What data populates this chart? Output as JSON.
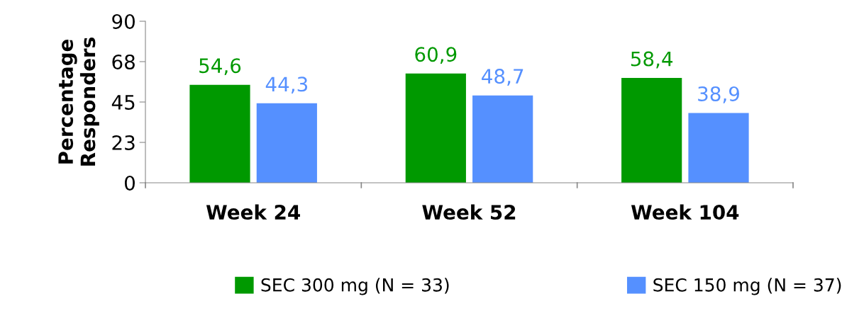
{
  "chart_data": {
    "type": "bar",
    "ylabel": "Percentage\nResponders",
    "categories": [
      "Week 24",
      "Week 52",
      "Week 104"
    ],
    "series": [
      {
        "name": "SEC 300 mg (N = 33)",
        "color": "#009900",
        "values": [
          54.6,
          60.9,
          58.4
        ],
        "value_labels": [
          "54,6",
          "60,9",
          "58,4"
        ]
      },
      {
        "name": "SEC 150 mg (N = 37)",
        "color": "#5590ff",
        "values": [
          44.3,
          48.7,
          38.9
        ],
        "value_labels": [
          "44,3",
          "48,7",
          "38,9"
        ]
      }
    ],
    "ylim": [
      0,
      90
    ],
    "yticks": [
      0,
      {
        "value": 22.5,
        "label": "23"
      },
      45,
      {
        "value": 67.5,
        "label": "68"
      },
      90
    ],
    "grid": false,
    "legend": "bottom"
  }
}
